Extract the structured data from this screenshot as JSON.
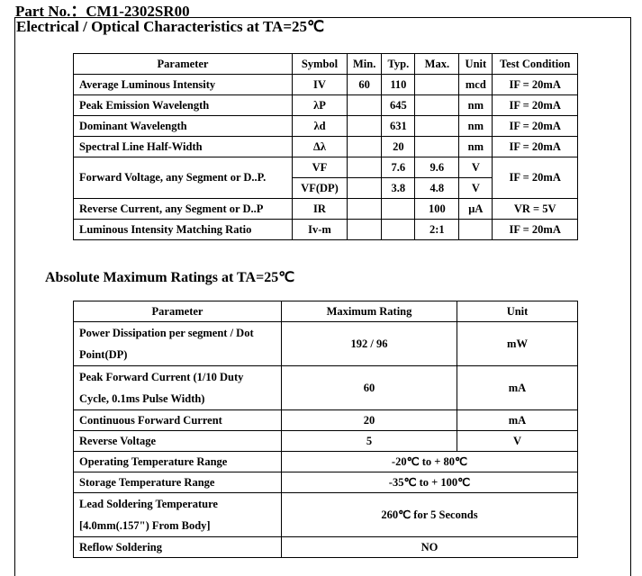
{
  "part_no": "Part No.：CM1-2302SR00",
  "section1": {
    "title": "Electrical / Optical Characteristics at TA=25℃",
    "headers": [
      "Parameter",
      "Symbol",
      "Min.",
      "Typ.",
      "Max.",
      "Unit",
      "Test Condition"
    ],
    "rows": [
      [
        "Average Luminous Intensity",
        "IV",
        "60",
        "110",
        "",
        "mcd",
        "IF = 20mA"
      ],
      [
        "Peak Emission Wavelength",
        "λP",
        "",
        "645",
        "",
        "nm",
        "IF = 20mA"
      ],
      [
        "Dominant Wavelength",
        "λd",
        "",
        "631",
        "",
        "nm",
        "IF = 20mA"
      ],
      [
        "Spectral Line Half-Width",
        "Δλ",
        "",
        "20",
        "",
        "nm",
        "IF = 20mA"
      ],
      [
        "Forward Voltage, any Segment or D..P.",
        "VF",
        "",
        "7.6",
        "9.6",
        "V",
        "IF = 20mA"
      ],
      [
        "",
        "VF(DP)",
        "",
        "3.8",
        "4.8",
        "V",
        ""
      ],
      [
        "Reverse Current, any   Segment or D..P",
        "IR",
        "",
        "",
        "100",
        "μA",
        "VR = 5V"
      ],
      [
        "Luminous Intensity Matching Ratio",
        "Iv-m",
        "",
        "",
        "2:1",
        "",
        "IF = 20mA"
      ]
    ]
  },
  "section2": {
    "title": "Absolute Maximum Ratings at TA=25℃",
    "headers": [
      "Parameter",
      "Maximum Rating",
      "Unit"
    ],
    "rows": [
      [
        "Power Dissipation per segment / Dot Point(DP)",
        "192 / 96",
        "mW"
      ],
      [
        "Peak Forward Current (1/10 Duty Cycle, 0.1ms Pulse Width)",
        "60",
        "mA"
      ],
      [
        "Continuous Forward Current",
        "20",
        "mA"
      ],
      [
        "Reverse Voltage",
        "5",
        "V"
      ],
      [
        "Operating Temperature Range",
        "-20℃  to + 80℃",
        ""
      ],
      [
        "Storage Temperature Range",
        "-35℃  to + 100℃",
        ""
      ],
      [
        "Lead Soldering Temperature [4.0mm(.157\") From Body]",
        "260℃  for 5 Seconds",
        ""
      ],
      [
        "Reflow Soldering",
        "NO",
        ""
      ]
    ]
  }
}
